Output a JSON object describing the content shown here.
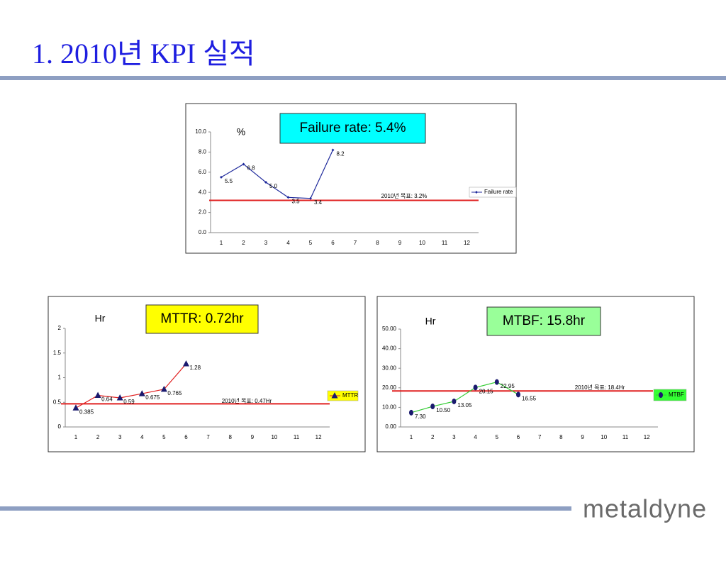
{
  "slide": {
    "title": "1. 2010년 KPI 실적",
    "logo": "metaldyne"
  },
  "chart_data": [
    {
      "type": "line",
      "unit_label": "%",
      "callout": "Failure rate: 5.4%",
      "callout_color": "#00ffff",
      "categories": [
        "1",
        "2",
        "3",
        "4",
        "5",
        "6",
        "7",
        "8",
        "9",
        "10",
        "11",
        "12"
      ],
      "series": [
        {
          "name": "Failure rate",
          "color": "#1f2a9c",
          "marker": "diamond",
          "values": [
            5.5,
            6.8,
            5.0,
            3.5,
            3.4,
            8.2,
            null,
            null,
            null,
            null,
            null,
            null
          ],
          "value_labels": [
            "5.5",
            "6.8",
            "5.0",
            "3.5",
            "3.4",
            "8.2",
            null,
            null,
            null,
            null,
            null,
            null
          ]
        }
      ],
      "target": 3.2,
      "target_label": "2010년 목표: 3.2%",
      "target_color": "#e02020",
      "ylim": [
        0,
        10
      ],
      "yticks": [
        {
          "value": 0,
          "label": "0.0"
        },
        {
          "value": 2,
          "label": "2.0"
        },
        {
          "value": 4,
          "label": "4.0"
        },
        {
          "value": 6,
          "label": "6.0"
        },
        {
          "value": 8,
          "label": "8.0"
        },
        {
          "value": 10,
          "label": "10.0"
        }
      ],
      "legend_position": "right"
    },
    {
      "type": "line",
      "unit_label": "Hr",
      "callout": "MTTR: 0.72hr",
      "callout_color": "#ffff00",
      "categories": [
        "1",
        "2",
        "3",
        "4",
        "5",
        "6",
        "7",
        "8",
        "9",
        "10",
        "11",
        "12"
      ],
      "series": [
        {
          "name": "MTTR",
          "color": "#e02020",
          "marker": "triangle",
          "marker_color": "#1a1a6e",
          "values": [
            0.385,
            0.64,
            0.59,
            0.675,
            0.765,
            1.28,
            null,
            null,
            null,
            null,
            null,
            null
          ]
        }
      ],
      "target": 0.47,
      "target_label": "2010년 목표: 0.47Hr",
      "target_color": "#e02020",
      "ylim": [
        0,
        2
      ],
      "yticks": [
        0,
        0.5,
        1,
        1.5,
        2
      ],
      "legend_position": "right",
      "legend_background": "#ffff00"
    },
    {
      "type": "line",
      "unit_label": "Hr",
      "callout": "MTBF: 15.8hr",
      "callout_color": "#99ff99",
      "categories": [
        "1",
        "2",
        "3",
        "4",
        "5",
        "6",
        "7",
        "8",
        "9",
        "10",
        "11",
        "12"
      ],
      "series": [
        {
          "name": "MTBF",
          "color": "#33cc33",
          "marker": "circle",
          "marker_color": "#1a1a6e",
          "values": [
            7.3,
            10.5,
            13.05,
            20.15,
            22.95,
            16.55,
            null,
            null,
            null,
            null,
            null,
            null
          ],
          "value_labels": [
            "7.30",
            "10.50",
            "13.05",
            "20.15",
            "22.95",
            "16.55",
            null,
            null,
            null,
            null,
            null,
            null
          ]
        }
      ],
      "target": 18.4,
      "target_label": "2010년 목표: 18.4Hr",
      "target_color": "#e02020",
      "ylim": [
        0,
        50
      ],
      "yticks": [
        {
          "value": 0,
          "label": "0.00"
        },
        {
          "value": 10,
          "label": "10.00"
        },
        {
          "value": 20,
          "label": "20.00"
        },
        {
          "value": 30,
          "label": "30.00"
        },
        {
          "value": 40,
          "label": "40.00"
        },
        {
          "value": 50,
          "label": "50.00"
        }
      ],
      "legend_position": "right",
      "legend_background": "#33ff33"
    }
  ]
}
